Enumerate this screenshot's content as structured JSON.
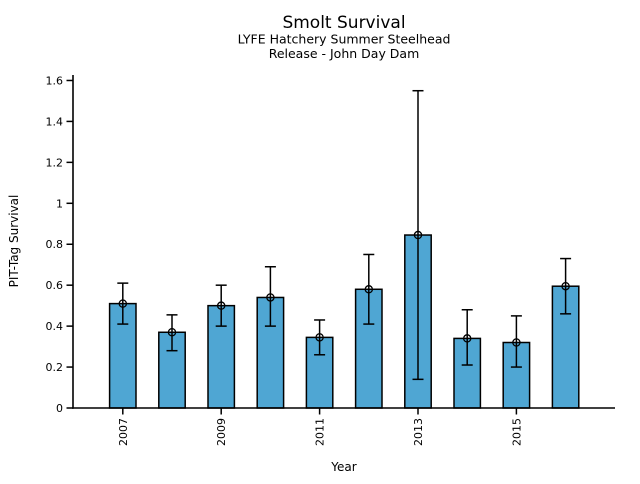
{
  "chart_data": {
    "type": "bar",
    "title": "Smolt Survival",
    "subtitle_line1": "LYFE Hatchery Summer Steelhead",
    "subtitle_line2": "Release - John Day Dam",
    "xlabel": "Year",
    "ylabel": "PIT-Tag Survival",
    "ylim": [
      0,
      1.6
    ],
    "grid": false,
    "legend": null,
    "categories": [
      2007,
      2008,
      2009,
      2010,
      2011,
      2012,
      2013,
      2014,
      2015,
      2016
    ],
    "series": [
      {
        "name": "PIT-Tag Survival",
        "values": [
          0.51,
          0.37,
          0.5,
          0.54,
          0.345,
          0.58,
          0.845,
          0.34,
          0.32,
          0.595
        ],
        "error_low": [
          0.41,
          0.28,
          0.4,
          0.4,
          0.26,
          0.41,
          0.14,
          0.21,
          0.2,
          0.46
        ],
        "error_high": [
          0.61,
          0.455,
          0.6,
          0.69,
          0.43,
          0.75,
          1.55,
          0.48,
          0.45,
          0.73
        ]
      }
    ],
    "yticks": [
      0,
      0.2,
      0.4,
      0.6,
      0.8,
      1,
      1.2,
      1.4,
      1.6
    ],
    "ytick_labels": [
      "0",
      "0.2",
      "0.4",
      "0.6",
      "0.8",
      "1",
      "1.2",
      "1.4",
      "1.6"
    ],
    "xticks": [
      2007,
      2009,
      2011,
      2013,
      2015
    ],
    "xtick_labels": [
      "2007",
      "2009",
      "2011",
      "2013",
      "2015"
    ],
    "bar_color": "#4FA6D3",
    "bar_edge_color": "#000000",
    "error_bar_color": "#000000",
    "marker": "open-circle",
    "marker_color": "#000000"
  }
}
